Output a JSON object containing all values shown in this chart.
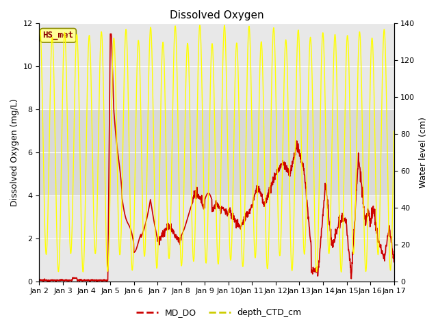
{
  "title": "Dissolved Oxygen",
  "ylabel_left": "Dissolved Oxygen (mg/L)",
  "ylabel_right": "Water level (cm)",
  "ylim_left": [
    0,
    12
  ],
  "ylim_right": [
    0,
    140
  ],
  "yticks_left": [
    0,
    2,
    4,
    6,
    8,
    10,
    12
  ],
  "yticks_right": [
    0,
    20,
    40,
    60,
    80,
    100,
    120,
    140
  ],
  "xlabel_ticks": [
    "Jan 2",
    "Jan 3",
    "Jan 4",
    "Jan 5",
    "Jan 6",
    "Jan 7",
    "Jan 8",
    "Jan 9",
    "Jan 10",
    "Jan 11",
    "Jan 12",
    "Jan 13",
    "Jan 14",
    "Jan 15",
    "Jan 16",
    "Jan 17"
  ],
  "annotation_text": "HS_met",
  "annotation_color": "#8B0000",
  "annotation_bg": "#FFFF99",
  "bg_outer": "#FFFFFF",
  "bg_band_light": "#EBEBEB",
  "bg_band_mid": "#E0E0E0",
  "grid_color": "#FFFFFF",
  "do_line_color": "#CC0000",
  "ctd_line_color": "#FFFF00",
  "title_fontsize": 11,
  "axis_label_fontsize": 9,
  "tick_fontsize": 8
}
